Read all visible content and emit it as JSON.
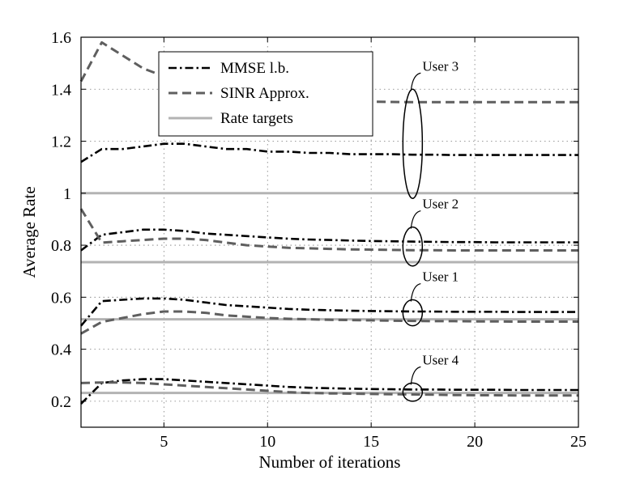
{
  "chart_data": {
    "type": "line",
    "title": "",
    "xlabel": "Number of iterations",
    "ylabel": "Average Rate",
    "xlim": [
      1,
      25
    ],
    "ylim": [
      0.1,
      1.6
    ],
    "xticks": [
      5,
      10,
      15,
      20,
      25
    ],
    "yticks": [
      0.2,
      0.4,
      0.6,
      0.8,
      1,
      1.2,
      1.4,
      1.6
    ],
    "grid": true,
    "legend_position": "top-left",
    "colors": {
      "mmse": "#000000",
      "sinr": "#5f5f5f",
      "target": "#b3b3b3"
    },
    "legend": [
      {
        "name": "MMSE l.b.",
        "style": "mmse"
      },
      {
        "name": "SINR Approx.",
        "style": "sinr"
      },
      {
        "name": "Rate targets",
        "style": "target"
      }
    ],
    "x": [
      1,
      2,
      3,
      4,
      5,
      6,
      7,
      8,
      9,
      10,
      11,
      12,
      13,
      14,
      15,
      16,
      17,
      18,
      19,
      20,
      21,
      22,
      23,
      24,
      25
    ],
    "series": [
      {
        "user": "3",
        "style": "mmse",
        "values": [
          1.12,
          1.17,
          1.17,
          1.18,
          1.19,
          1.19,
          1.18,
          1.17,
          1.17,
          1.16,
          1.16,
          1.155,
          1.155,
          1.15,
          1.15,
          1.15,
          1.148,
          1.148,
          1.147,
          1.147,
          1.147,
          1.147,
          1.147,
          1.147,
          1.147
        ]
      },
      {
        "user": "3",
        "style": "sinr",
        "values": [
          1.43,
          1.58,
          1.53,
          1.48,
          1.45,
          1.43,
          1.41,
          1.39,
          1.38,
          1.37,
          1.365,
          1.36,
          1.355,
          1.353,
          1.352,
          1.351,
          1.35,
          1.35,
          1.35,
          1.35,
          1.35,
          1.35,
          1.35,
          1.35,
          1.35
        ]
      },
      {
        "user": "3",
        "style": "target",
        "values": [
          1,
          1,
          1,
          1,
          1,
          1,
          1,
          1,
          1,
          1,
          1,
          1,
          1,
          1,
          1,
          1,
          1,
          1,
          1,
          1,
          1,
          1,
          1,
          1,
          1
        ]
      },
      {
        "user": "2",
        "style": "mmse",
        "values": [
          0.78,
          0.84,
          0.85,
          0.86,
          0.86,
          0.855,
          0.845,
          0.84,
          0.835,
          0.83,
          0.825,
          0.822,
          0.82,
          0.818,
          0.816,
          0.815,
          0.814,
          0.813,
          0.812,
          0.812,
          0.811,
          0.811,
          0.811,
          0.811,
          0.811
        ]
      },
      {
        "user": "2",
        "style": "sinr",
        "values": [
          0.94,
          0.81,
          0.815,
          0.82,
          0.825,
          0.825,
          0.82,
          0.81,
          0.8,
          0.795,
          0.79,
          0.788,
          0.786,
          0.784,
          0.783,
          0.782,
          0.781,
          0.781,
          0.78,
          0.78,
          0.78,
          0.78,
          0.78,
          0.78,
          0.78
        ]
      },
      {
        "user": "2",
        "style": "target",
        "values": [
          0.735,
          0.735,
          0.735,
          0.735,
          0.735,
          0.735,
          0.735,
          0.735,
          0.735,
          0.735,
          0.735,
          0.735,
          0.735,
          0.735,
          0.735,
          0.735,
          0.735,
          0.735,
          0.735,
          0.735,
          0.735,
          0.735,
          0.735,
          0.735,
          0.735
        ]
      },
      {
        "user": "1",
        "style": "mmse",
        "values": [
          0.49,
          0.585,
          0.59,
          0.595,
          0.595,
          0.59,
          0.58,
          0.57,
          0.565,
          0.56,
          0.555,
          0.552,
          0.55,
          0.548,
          0.547,
          0.546,
          0.545,
          0.545,
          0.544,
          0.544,
          0.544,
          0.543,
          0.543,
          0.543,
          0.543
        ]
      },
      {
        "user": "1",
        "style": "sinr",
        "values": [
          0.46,
          0.505,
          0.52,
          0.535,
          0.545,
          0.545,
          0.54,
          0.53,
          0.525,
          0.52,
          0.517,
          0.515,
          0.513,
          0.512,
          0.511,
          0.51,
          0.509,
          0.508,
          0.508,
          0.507,
          0.507,
          0.506,
          0.506,
          0.506,
          0.506
        ]
      },
      {
        "user": "1",
        "style": "target",
        "values": [
          0.515,
          0.515,
          0.515,
          0.515,
          0.515,
          0.515,
          0.515,
          0.515,
          0.515,
          0.515,
          0.515,
          0.515,
          0.515,
          0.515,
          0.515,
          0.515,
          0.515,
          0.515,
          0.515,
          0.515,
          0.515,
          0.515,
          0.515,
          0.515,
          0.515
        ]
      },
      {
        "user": "4",
        "style": "mmse",
        "values": [
          0.19,
          0.27,
          0.28,
          0.285,
          0.285,
          0.28,
          0.275,
          0.27,
          0.265,
          0.26,
          0.255,
          0.252,
          0.25,
          0.248,
          0.247,
          0.246,
          0.245,
          0.245,
          0.244,
          0.244,
          0.244,
          0.243,
          0.243,
          0.243,
          0.243
        ]
      },
      {
        "user": "4",
        "style": "sinr",
        "values": [
          0.27,
          0.272,
          0.272,
          0.27,
          0.265,
          0.26,
          0.255,
          0.25,
          0.245,
          0.24,
          0.235,
          0.232,
          0.23,
          0.229,
          0.228,
          0.227,
          0.226,
          0.225,
          0.224,
          0.223,
          0.223,
          0.222,
          0.222,
          0.222,
          0.222
        ]
      },
      {
        "user": "4",
        "style": "target",
        "values": [
          0.232,
          0.232,
          0.232,
          0.232,
          0.232,
          0.232,
          0.232,
          0.232,
          0.232,
          0.232,
          0.232,
          0.232,
          0.232,
          0.232,
          0.232,
          0.232,
          0.232,
          0.232,
          0.232,
          0.232,
          0.232,
          0.232,
          0.232,
          0.232,
          0.232
        ]
      }
    ],
    "annotations": [
      {
        "label": "User 3",
        "x": 17,
        "y_low": 0.98,
        "y_high": 1.4
      },
      {
        "label": "User 2",
        "x": 17,
        "y_low": 0.72,
        "y_high": 0.87
      },
      {
        "label": "User 1",
        "x": 17,
        "y_low": 0.49,
        "y_high": 0.59
      },
      {
        "label": "User 4",
        "x": 17,
        "y_low": 0.2,
        "y_high": 0.27
      }
    ]
  }
}
